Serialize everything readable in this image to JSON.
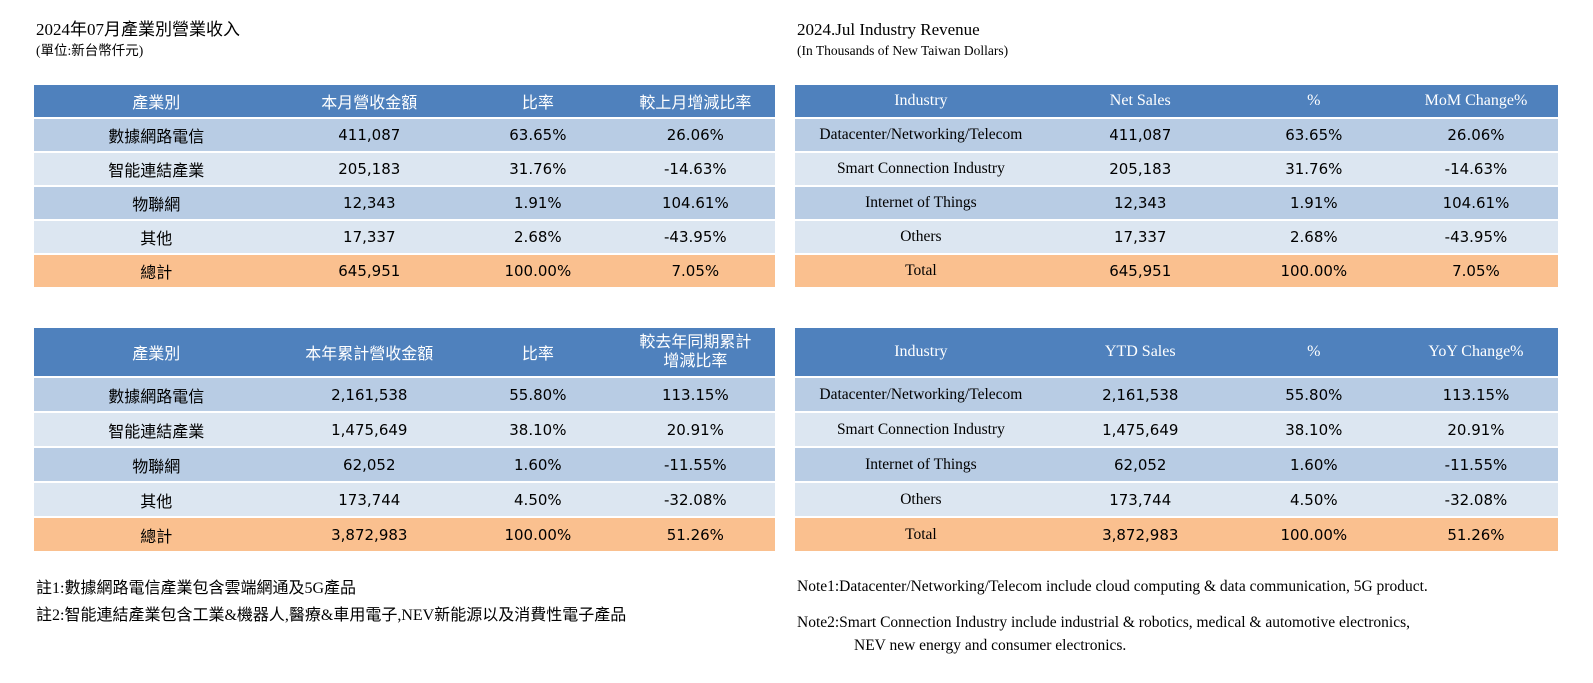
{
  "colors": {
    "header_bg": "#4F81BD",
    "row_alt1": "#B8CCE4",
    "row_alt2": "#DCE6F1",
    "total_bg": "#FAC08F"
  },
  "panels": {
    "zh": {
      "title": "2024年07月產業別營業收入",
      "subtitle": "(單位:新台幣仟元)",
      "monthly": {
        "headers": [
          "產業別",
          "本月營收金額",
          "比率",
          "較上月增減比率"
        ],
        "rows": [
          [
            "數據網路電信",
            "411,087",
            "63.65%",
            "26.06%"
          ],
          [
            "智能連結產業",
            "205,183",
            "31.76%",
            "-14.63%"
          ],
          [
            "物聯網",
            "12,343",
            "1.91%",
            "104.61%"
          ],
          [
            "其他",
            "17,337",
            "2.68%",
            "-43.95%"
          ],
          [
            "總計",
            "645,951",
            "100.00%",
            "7.05%"
          ]
        ]
      },
      "ytd": {
        "headers": [
          "產業別",
          "本年累計營收金額",
          "比率",
          "較去年同期累計\n增減比率"
        ],
        "rows": [
          [
            "數據網路電信",
            "2,161,538",
            "55.80%",
            "113.15%"
          ],
          [
            "智能連結產業",
            "1,475,649",
            "38.10%",
            "20.91%"
          ],
          [
            "物聯網",
            "62,052",
            "1.60%",
            "-11.55%"
          ],
          [
            "其他",
            "173,744",
            "4.50%",
            "-32.08%"
          ],
          [
            "總計",
            "3,872,983",
            "100.00%",
            "51.26%"
          ]
        ]
      },
      "note1": "註1:數據網路電信產業包含雲端網通及5G產品",
      "note2": "註2:智能連結產業包含工業&機器人,醫療&車用電子,NEV新能源以及消費性電子產品"
    },
    "en": {
      "title": "2024.Jul Industry Revenue",
      "subtitle": "(In Thousands of New Taiwan Dollars)",
      "monthly": {
        "headers": [
          "Industry",
          "Net Sales",
          "%",
          "MoM Change%"
        ],
        "rows": [
          [
            "Datacenter/Networking/Telecom",
            "411,087",
            "63.65%",
            "26.06%"
          ],
          [
            "Smart Connection Industry",
            "205,183",
            "31.76%",
            "-14.63%"
          ],
          [
            "Internet of Things",
            "12,343",
            "1.91%",
            "104.61%"
          ],
          [
            "Others",
            "17,337",
            "2.68%",
            "-43.95%"
          ],
          [
            "Total",
            "645,951",
            "100.00%",
            "7.05%"
          ]
        ]
      },
      "ytd": {
        "headers": [
          "Industry",
          "YTD Sales",
          "%",
          "YoY Change%"
        ],
        "rows": [
          [
            "Datacenter/Networking/Telecom",
            "2,161,538",
            "55.80%",
            "113.15%"
          ],
          [
            "Smart Connection Industry",
            "1,475,649",
            "38.10%",
            "20.91%"
          ],
          [
            "Internet of Things",
            "62,052",
            "1.60%",
            "-11.55%"
          ],
          [
            "Others",
            "173,744",
            "4.50%",
            "-32.08%"
          ],
          [
            "Total",
            "3,872,983",
            "100.00%",
            "51.26%"
          ]
        ]
      },
      "note1": "Note1:Datacenter/Networking/Telecom include cloud computing & data communication, 5G product.",
      "note2": "Note2:Smart Connection Industry include industrial & robotics, medical & automotive electronics,",
      "note2_cont": "NEV new energy and consumer electronics."
    }
  }
}
